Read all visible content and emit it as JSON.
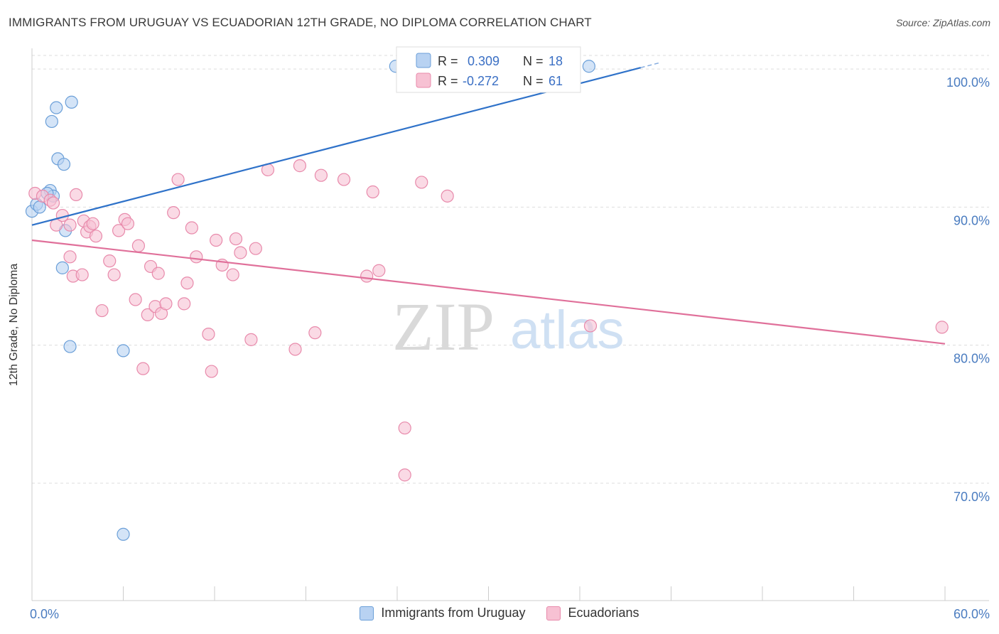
{
  "title": "IMMIGRANTS FROM URUGUAY VS ECUADORIAN 12TH GRADE, NO DIPLOMA CORRELATION CHART",
  "source": "Source: ZipAtlas.com",
  "watermark": {
    "zip": "ZIP",
    "atlas": "atlas"
  },
  "colors": {
    "blue_fill": "#b8d2f2",
    "blue_stroke": "#6b9fd8",
    "blue_line": "#2f72c9",
    "pink_fill": "#f7c1d3",
    "pink_stroke": "#e88aab",
    "pink_line": "#e0709a",
    "tick": "#4a7cc0",
    "grid": "#dddddd"
  },
  "stats": [
    {
      "r_label": "R =",
      "r_value": "0.309",
      "n_label": "N =",
      "n_value": "18"
    },
    {
      "r_label": "R =",
      "r_value": "-0.272",
      "n_label": "N =",
      "n_value": "61"
    }
  ],
  "chart_data": {
    "type": "scatter",
    "xlabel": "",
    "ylabel": "12th Grade, No Diploma",
    "xlim": [
      0,
      60
    ],
    "ylim": [
      61.5,
      101.5
    ],
    "x_tick_labels": [
      "0.0%",
      "60.0%"
    ],
    "y_ticks": [
      70,
      80,
      90,
      100
    ],
    "y_tick_labels": [
      "70.0%",
      "80.0%",
      "90.0%",
      "100.0%"
    ],
    "grid": true,
    "legend_position": "bottom",
    "series": [
      {
        "name": "Immigrants from Uruguay",
        "color": "#6b9fd8",
        "points": [
          [
            0.0,
            89.7
          ],
          [
            0.3,
            90.2
          ],
          [
            0.5,
            90.0
          ],
          [
            1.2,
            91.2
          ],
          [
            1.3,
            96.2
          ],
          [
            1.6,
            97.2
          ],
          [
            1.7,
            93.5
          ],
          [
            1.4,
            90.8
          ],
          [
            2.1,
            93.1
          ],
          [
            2.2,
            88.3
          ],
          [
            2.0,
            85.6
          ],
          [
            2.5,
            79.9
          ],
          [
            2.6,
            97.6
          ],
          [
            6.0,
            79.6
          ],
          [
            6.0,
            66.3
          ],
          [
            23.9,
            100.2
          ],
          [
            36.6,
            100.2
          ],
          [
            1.0,
            91.0
          ]
        ],
        "trend": {
          "x": [
            0.0,
            40.0
          ],
          "y": [
            88.7,
            100.1
          ]
        }
      },
      {
        "name": "Ecuadorians",
        "color": "#e88aab",
        "points": [
          [
            0.2,
            91.0
          ],
          [
            0.7,
            90.8
          ],
          [
            1.2,
            90.5
          ],
          [
            1.4,
            90.3
          ],
          [
            1.6,
            88.7
          ],
          [
            2.0,
            89.4
          ],
          [
            2.5,
            86.4
          ],
          [
            2.5,
            88.7
          ],
          [
            2.7,
            85.0
          ],
          [
            3.3,
            85.1
          ],
          [
            3.4,
            89.0
          ],
          [
            3.6,
            88.2
          ],
          [
            3.8,
            88.6
          ],
          [
            4.2,
            87.9
          ],
          [
            4.6,
            82.5
          ],
          [
            5.1,
            86.1
          ],
          [
            5.4,
            85.1
          ],
          [
            5.7,
            88.3
          ],
          [
            6.1,
            89.1
          ],
          [
            6.3,
            88.8
          ],
          [
            6.8,
            83.3
          ],
          [
            7.0,
            87.2
          ],
          [
            7.3,
            78.3
          ],
          [
            7.6,
            82.2
          ],
          [
            7.8,
            85.7
          ],
          [
            8.1,
            82.8
          ],
          [
            8.3,
            85.2
          ],
          [
            8.5,
            82.3
          ],
          [
            8.8,
            83.0
          ],
          [
            9.3,
            89.6
          ],
          [
            9.6,
            92.0
          ],
          [
            10.0,
            83.0
          ],
          [
            10.2,
            84.5
          ],
          [
            10.5,
            88.5
          ],
          [
            10.8,
            86.4
          ],
          [
            11.6,
            80.8
          ],
          [
            11.8,
            78.1
          ],
          [
            12.1,
            87.6
          ],
          [
            12.5,
            85.8
          ],
          [
            13.2,
            85.1
          ],
          [
            13.4,
            87.7
          ],
          [
            13.7,
            86.7
          ],
          [
            14.4,
            80.4
          ],
          [
            14.7,
            87.0
          ],
          [
            15.5,
            92.7
          ],
          [
            17.3,
            79.7
          ],
          [
            17.6,
            93.0
          ],
          [
            18.6,
            80.9
          ],
          [
            19.0,
            92.3
          ],
          [
            20.5,
            92.0
          ],
          [
            22.0,
            85.0
          ],
          [
            22.4,
            91.1
          ],
          [
            22.8,
            85.4
          ],
          [
            24.5,
            74.0
          ],
          [
            24.5,
            70.6
          ],
          [
            25.6,
            91.8
          ],
          [
            27.3,
            90.8
          ],
          [
            36.7,
            81.4
          ],
          [
            59.8,
            81.3
          ],
          [
            2.9,
            90.9
          ],
          [
            4.0,
            88.8
          ]
        ],
        "trend": {
          "x": [
            0.0,
            60.0
          ],
          "y": [
            87.6,
            80.1
          ]
        }
      }
    ]
  }
}
